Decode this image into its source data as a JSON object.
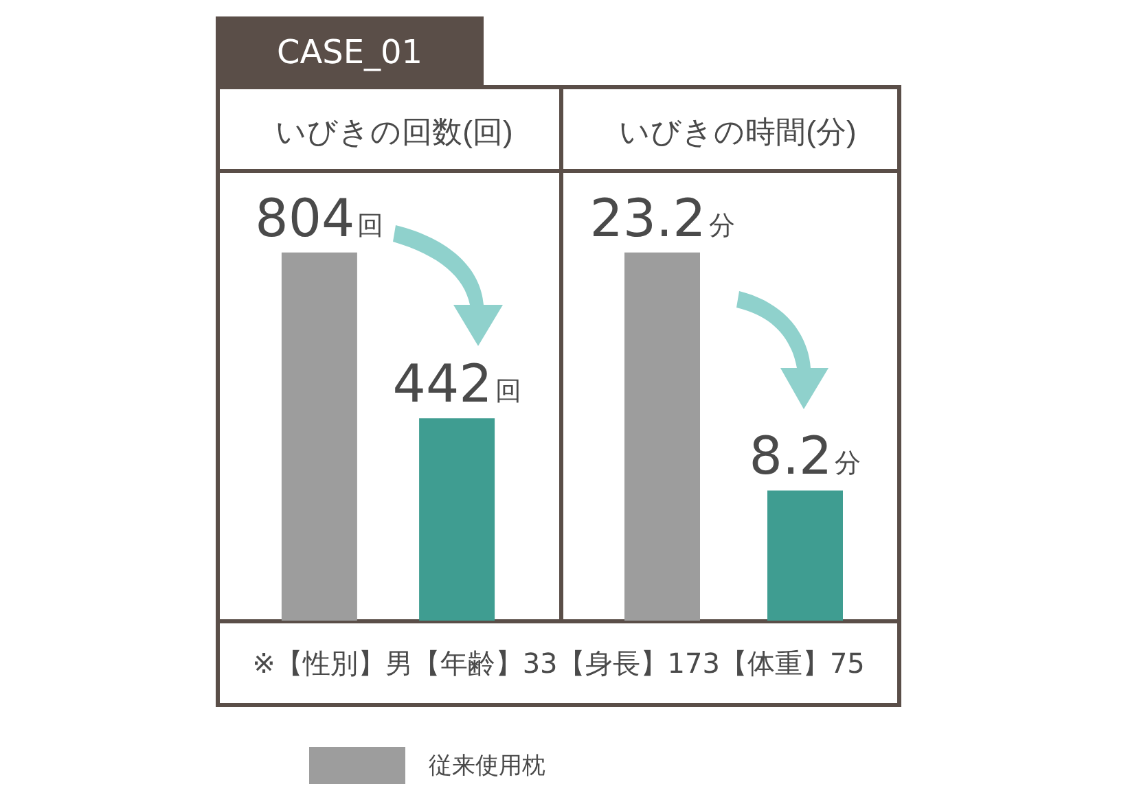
{
  "chart_data": [
    {
      "type": "bar",
      "title": "いびきの回数(回)",
      "categories": [
        null
      ],
      "legend": "bottom",
      "annotations": [
        "CASE_01",
        "※【性別】男【年齢】33【身長】173【体重】75"
      ],
      "series": [
        {
          "name": "従来使用枕",
          "color": "#9d9d9d",
          "values": [
            804
          ],
          "value_labels": [
            "804回"
          ]
        },
        {
          "color": "#3f9d91",
          "values": [
            442
          ],
          "value_labels": [
            "442回"
          ]
        }
      ]
    },
    {
      "type": "bar",
      "title": "いびきの時間(分)",
      "categories": [
        null,
        null
      ],
      "values": [
        23.2,
        8.2
      ],
      "colors": [
        "#9d9d9d",
        "#3f9d91"
      ],
      "value_labels": [
        "23.2分",
        "8.2分"
      ]
    }
  ]
}
